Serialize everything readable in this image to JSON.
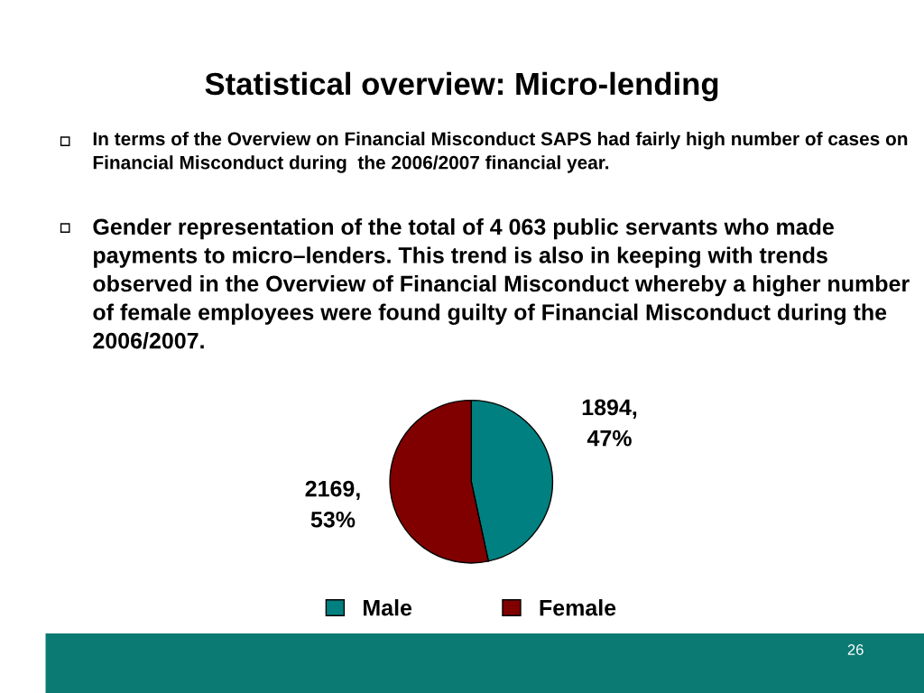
{
  "chart_data": {
    "type": "pie",
    "title": "Statistical overview: Micro-lending",
    "annotations": [
      "In terms of the Overview on Financial Misconduct SAPS had fairly high number of cases on Financial Misconduct during  the 2006/2007 financial year.",
      "Gender representation of the total of 4 063 public servants who made payments to micro–lenders. This trend is also in keeping with trends observed in the Overview of Financial Misconduct whereby a higher number of female employees were found guilty of Financial Misconduct during the 2006/2007.",
      "26"
    ],
    "categories": [
      "Male",
      "Female"
    ],
    "values": [
      1894,
      2169
    ],
    "colors": [
      "#008080",
      "#800000"
    ],
    "value_labels": [
      "1894,\n47%",
      "2169,\n53%"
    ],
    "legend": "bottom"
  }
}
